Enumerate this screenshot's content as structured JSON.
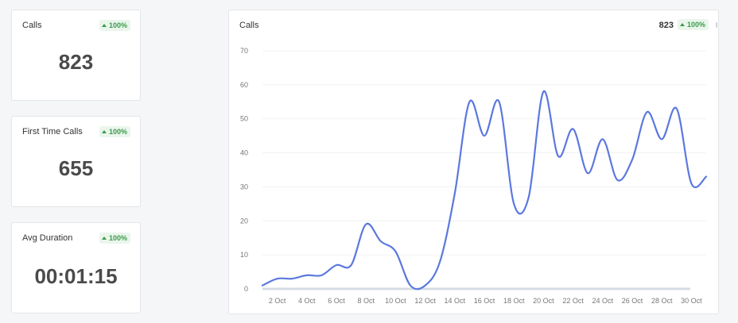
{
  "cards": [
    {
      "title": "Calls",
      "value": "823",
      "change": "100%"
    },
    {
      "title": "First Time Calls",
      "value": "655",
      "change": "100%"
    },
    {
      "title": "Avg Duration",
      "value": "00:01:15",
      "change": "100%"
    }
  ],
  "chart_panel": {
    "title": "Calls",
    "total": "823",
    "change": "100%"
  },
  "colors": {
    "line": "#5b78de",
    "badge_bg": "#eaf6ec",
    "badge_text": "#3c9a4b"
  },
  "icons": {
    "badge_arrow": "triangle-up-icon"
  },
  "chart_data": {
    "type": "line",
    "title": "",
    "xlabel": "",
    "ylabel": "",
    "ylim": [
      0,
      70
    ],
    "yticks": [
      0,
      10,
      20,
      30,
      40,
      50,
      60,
      70
    ],
    "x": [
      "1 Oct",
      "2 Oct",
      "3 Oct",
      "4 Oct",
      "5 Oct",
      "6 Oct",
      "7 Oct",
      "8 Oct",
      "9 Oct",
      "10 Oct",
      "11 Oct",
      "12 Oct",
      "13 Oct",
      "14 Oct",
      "15 Oct",
      "16 Oct",
      "17 Oct",
      "18 Oct",
      "19 Oct",
      "20 Oct",
      "21 Oct",
      "22 Oct",
      "23 Oct",
      "24 Oct",
      "25 Oct",
      "26 Oct",
      "27 Oct",
      "28 Oct",
      "29 Oct",
      "30 Oct",
      "31 Oct"
    ],
    "xticks": [
      "2 Oct",
      "4 Oct",
      "6 Oct",
      "8 Oct",
      "10 Oct",
      "12 Oct",
      "14 Oct",
      "16 Oct",
      "18 Oct",
      "20 Oct",
      "22 Oct",
      "24 Oct",
      "26 Oct",
      "28 Oct",
      "30 Oct"
    ],
    "series": [
      {
        "values": [
          1,
          3,
          3,
          4,
          4,
          7,
          7,
          19,
          14,
          11,
          1,
          1,
          8,
          28,
          55,
          45,
          55,
          25,
          27,
          58,
          39,
          47,
          34,
          44,
          32,
          38,
          52,
          44,
          53,
          31,
          33
        ]
      }
    ],
    "grid": true,
    "legend": "none"
  }
}
